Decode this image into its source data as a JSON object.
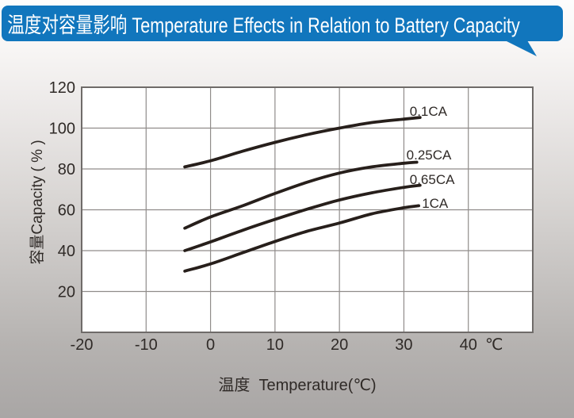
{
  "header": {
    "title": "温度对容量影响 Temperature Effects in Relation to Battery Capacity"
  },
  "colors": {
    "banner_blue": "#1176bd",
    "banner_text": "#ffffff",
    "curve": "#271f1b",
    "grid": "#908c8a",
    "plot_border": "#6f6b69",
    "text": "#2f2a27",
    "plot_bg": "#ffffff",
    "page_bg_top": "#fdfcfc",
    "page_bg_bottom": "#a9a6a5"
  },
  "chart_data": {
    "type": "line",
    "title": "温度对容量影响 Temperature Effects in Relation to Battery Capacity",
    "xlabel": "温度  Temperature(℃)",
    "ylabel": "容量Capacity ( % )",
    "x_unit_label": "℃",
    "xlim": [
      -20,
      50
    ],
    "ylim": [
      0,
      120
    ],
    "xticks": [
      -20,
      -10,
      0,
      10,
      20,
      30,
      40
    ],
    "yticks": [
      120,
      100,
      80,
      60,
      40,
      20
    ],
    "grid": true,
    "legend_position": "inline-labels-right-of-curves",
    "series": [
      {
        "name": "0.1CA",
        "label_at": [
          30.9,
          106
        ],
        "points": [
          [
            -4,
            81
          ],
          [
            0,
            84
          ],
          [
            5,
            88.7
          ],
          [
            10,
            93
          ],
          [
            15,
            96.8
          ],
          [
            20,
            100
          ],
          [
            25,
            102.7
          ],
          [
            30,
            104.4
          ],
          [
            32.5,
            105.2
          ]
        ]
      },
      {
        "name": "0.25CA",
        "label_at": [
          30.4,
          84.7
        ],
        "points": [
          [
            -4,
            51
          ],
          [
            0,
            56.5
          ],
          [
            5,
            62
          ],
          [
            10,
            68
          ],
          [
            15,
            73.5
          ],
          [
            20,
            78
          ],
          [
            25,
            81
          ],
          [
            30,
            82.8
          ],
          [
            32,
            83.3
          ]
        ]
      },
      {
        "name": "0.65CA",
        "label_at": [
          30.9,
          72.6
        ],
        "points": [
          [
            -4,
            40
          ],
          [
            0,
            44.3
          ],
          [
            5,
            50
          ],
          [
            10,
            55.3
          ],
          [
            15,
            60.3
          ],
          [
            20,
            64.8
          ],
          [
            25,
            68.3
          ],
          [
            30,
            71
          ],
          [
            32.5,
            72
          ]
        ]
      },
      {
        "name": "1CA",
        "label_at": [
          32.8,
          61.0
        ],
        "points": [
          [
            -4,
            30
          ],
          [
            0,
            33.5
          ],
          [
            5,
            39
          ],
          [
            10,
            44.5
          ],
          [
            15,
            49.5
          ],
          [
            20,
            53.5
          ],
          [
            25,
            58
          ],
          [
            30,
            61
          ],
          [
            32.3,
            62
          ]
        ]
      }
    ]
  }
}
